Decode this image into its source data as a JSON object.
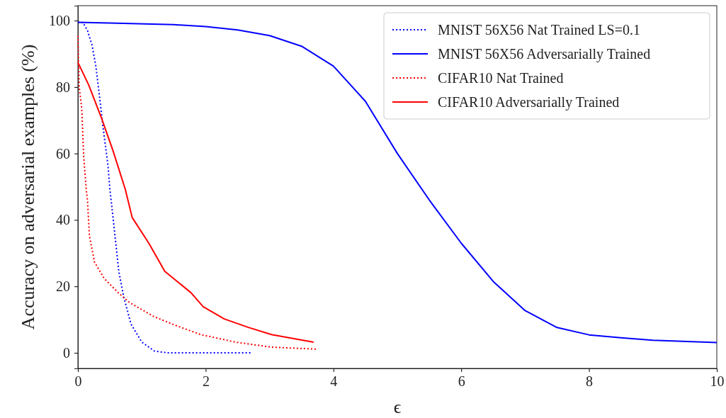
{
  "chart_data": {
    "type": "line",
    "xlabel": "ϵ",
    "ylabel": "Accuracy on adversarial examples (%)",
    "xlim": [
      0,
      10
    ],
    "ylim": [
      -4.7,
      104.5
    ],
    "xticks": [
      0,
      2,
      4,
      6,
      8,
      10
    ],
    "yticks": [
      0,
      20,
      40,
      60,
      80,
      100
    ],
    "legend": "top right",
    "grid": false,
    "marker": "none",
    "series": [
      {
        "name": "MNIST 56X56 Nat Trained LS=0.1",
        "color": "#0000ff",
        "line_style": "dotted",
        "x": [
          0,
          0.08,
          0.15,
          0.22,
          0.28,
          0.33,
          0.39,
          0.47,
          0.5,
          0.55,
          0.64,
          0.72,
          0.83,
          1.0,
          1.2,
          1.4,
          2.72
        ],
        "values": [
          99.5,
          99.4,
          97,
          92.7,
          86.4,
          78.5,
          68.4,
          56.5,
          49.3,
          40.7,
          24.5,
          16.6,
          8.7,
          3.2,
          0.5,
          0,
          0
        ]
      },
      {
        "name": "MNIST 56X56 Adversarially Trained",
        "color": "#0000ff",
        "line_style": "solid",
        "x": [
          0,
          0.5,
          1.5,
          2,
          2.5,
          3,
          3.5,
          4,
          4.5,
          5,
          5.5,
          6,
          6.5,
          7,
          7.5,
          8,
          8.5,
          9,
          10
        ],
        "values": [
          99.5,
          99.3,
          98.8,
          98.2,
          97.2,
          95.5,
          92.3,
          86.3,
          75.7,
          60,
          46,
          33,
          21.5,
          12.7,
          7.6,
          5.4,
          4.5,
          3.8,
          3.1
        ]
      },
      {
        "name": "CIFAR10 Nat Trained",
        "color": "#ff0000",
        "line_style": "dotted",
        "x": [
          0,
          0.02,
          0.06,
          0.09,
          0.13,
          0.15,
          0.18,
          0.26,
          0.41,
          0.63,
          0.81,
          1.19,
          1.55,
          1.92,
          2.47,
          3.03,
          3.73
        ],
        "values": [
          95.5,
          80,
          73.5,
          59.3,
          49.3,
          45.8,
          35.2,
          27.3,
          22.4,
          18.1,
          15.1,
          10.9,
          8.1,
          5.5,
          3.2,
          1.7,
          1.1
        ]
      },
      {
        "name": "CIFAR10 Adversarially Trained",
        "color": "#ff0000",
        "line_style": "solid",
        "x": [
          0,
          0.17,
          0.37,
          0.55,
          0.74,
          0.85,
          1.11,
          1.36,
          1.77,
          1.96,
          2.29,
          2.66,
          3.03,
          3.69
        ],
        "values": [
          87.4,
          80.6,
          70.6,
          60.8,
          49.3,
          40.7,
          33,
          24.5,
          18.1,
          13.9,
          10.2,
          7.7,
          5.5,
          3.2
        ]
      }
    ]
  }
}
